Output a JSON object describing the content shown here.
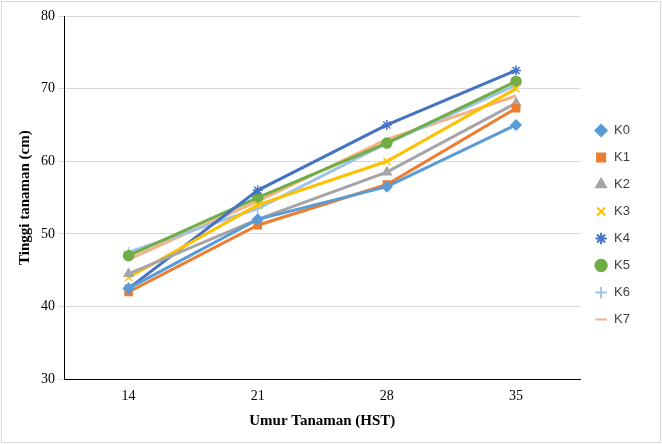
{
  "chart_data": {
    "type": "line",
    "x_label": "Umur Tanaman (HST)",
    "y_label": "Tinggi tanaman (cm)",
    "categories": [
      14,
      21,
      28,
      35
    ],
    "series": [
      {
        "name": "K0",
        "color": "#5b9bd5",
        "marker": "diamond",
        "values": [
          42.5,
          52,
          56.5,
          65
        ]
      },
      {
        "name": "K1",
        "color": "#ed7d31",
        "marker": "square",
        "values": [
          42,
          51.2,
          56.8,
          67.3
        ]
      },
      {
        "name": "K2",
        "color": "#a5a5a5",
        "marker": "triangle",
        "values": [
          44.5,
          52,
          58.5,
          68
        ]
      },
      {
        "name": "K3",
        "color": "#ffc000",
        "marker": "x",
        "values": [
          44,
          54,
          60,
          70
        ]
      },
      {
        "name": "K4",
        "color": "#4472c4",
        "marker": "star",
        "values": [
          42.5,
          56,
          65,
          72.5
        ]
      },
      {
        "name": "K5",
        "color": "#70ad47",
        "marker": "circle",
        "values": [
          47,
          55,
          62.5,
          71
        ]
      },
      {
        "name": "K6",
        "color": "#9dc3e6",
        "marker": "plus",
        "values": [
          47.5,
          53.5,
          62.5,
          70.5
        ]
      },
      {
        "name": "K7",
        "color": "#f4b183",
        "marker": "none",
        "values": [
          46.5,
          54.5,
          63,
          69
        ]
      }
    ],
    "ylim": [
      30,
      80
    ],
    "yticks": [
      30,
      40,
      50,
      60,
      70,
      80
    ],
    "grid": true,
    "legend": "right"
  }
}
